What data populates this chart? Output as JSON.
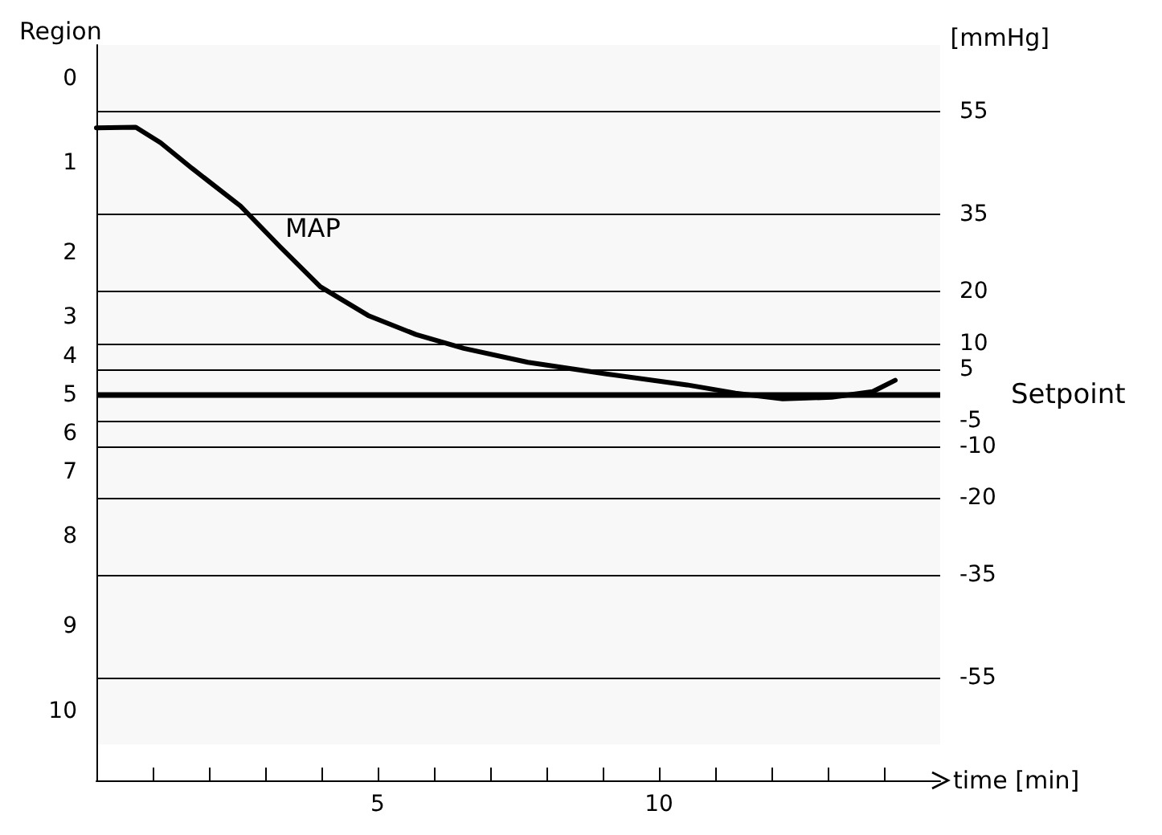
{
  "chart_data": {
    "type": "line",
    "xlabel": "time [min]",
    "ylabel": "[mmHg]",
    "x": [
      0,
      0.7,
      1.14,
      1.7,
      2.56,
      3.27,
      3.98,
      4.83,
      5.68,
      6.53,
      7.67,
      9.09,
      10.5,
      11.36,
      12.2,
      13.07,
      13.8,
      14.2
    ],
    "series": [
      {
        "name": "MAP",
        "color": "#000000",
        "values": [
          51.9,
          52,
          49,
          44,
          36.7,
          28.7,
          21,
          15.4,
          11.7,
          9,
          6.3,
          4,
          1.9,
          0.3,
          -0.8,
          -0.5,
          0.6,
          2.8
        ]
      }
    ],
    "xlim": [
      0,
      15
    ],
    "xticks": [
      {
        "value": 0,
        "label": null
      },
      {
        "value": 1,
        "label": null
      },
      {
        "value": 2,
        "label": null
      },
      {
        "value": 3,
        "label": null
      },
      {
        "value": 4,
        "label": null
      },
      5,
      {
        "value": 6,
        "label": null
      },
      {
        "value": 7,
        "label": null
      },
      {
        "value": 8,
        "label": null
      },
      {
        "value": 9,
        "label": null
      },
      10,
      {
        "value": 11,
        "label": null
      },
      {
        "value": 12,
        "label": null
      },
      {
        "value": 13,
        "label": null
      },
      {
        "value": 14,
        "label": null
      }
    ],
    "ylim": [
      -75,
      68
    ],
    "yticks": [
      55,
      35,
      20,
      10,
      5,
      -5,
      -10,
      -20,
      -35,
      -55
    ],
    "ref_lines": [
      {
        "axis": "y",
        "value": 0,
        "label": "Setpoint",
        "color": "#000000",
        "line_style": "solid"
      }
    ],
    "bands": [
      {
        "axis": "y",
        "from": 55,
        "to": 68,
        "label": "0",
        "color": "#f8f8f8"
      },
      {
        "axis": "y",
        "from": 35,
        "to": 55,
        "label": "1",
        "color": "#f8f8f8"
      },
      {
        "axis": "y",
        "from": 20,
        "to": 35,
        "label": "2",
        "color": "#f8f8f8"
      },
      {
        "axis": "y",
        "from": 10,
        "to": 20,
        "label": "3",
        "color": "#f8f8f8"
      },
      {
        "axis": "y",
        "from": 5,
        "to": 10,
        "label": "4",
        "color": "#f8f8f8"
      },
      {
        "axis": "y",
        "from": -5,
        "to": 5,
        "label": "5",
        "color": "#f8f8f8"
      },
      {
        "axis": "y",
        "from": -10,
        "to": -5,
        "label": "6",
        "color": "#f8f8f8"
      },
      {
        "axis": "y",
        "from": -20,
        "to": -10,
        "label": "7",
        "color": "#f8f8f8"
      },
      {
        "axis": "y",
        "from": -35,
        "to": -20,
        "label": "8",
        "color": "#f8f8f8"
      },
      {
        "axis": "y",
        "from": -55,
        "to": -35,
        "label": "9",
        "color": "#f8f8f8"
      },
      {
        "axis": "y",
        "from": -68,
        "to": -55,
        "label": "10",
        "color": "#f8f8f8"
      }
    ],
    "annotations": [
      "Region"
    ],
    "grid": "y",
    "legend": false,
    "marker": "none",
    "line_style": "solid"
  }
}
